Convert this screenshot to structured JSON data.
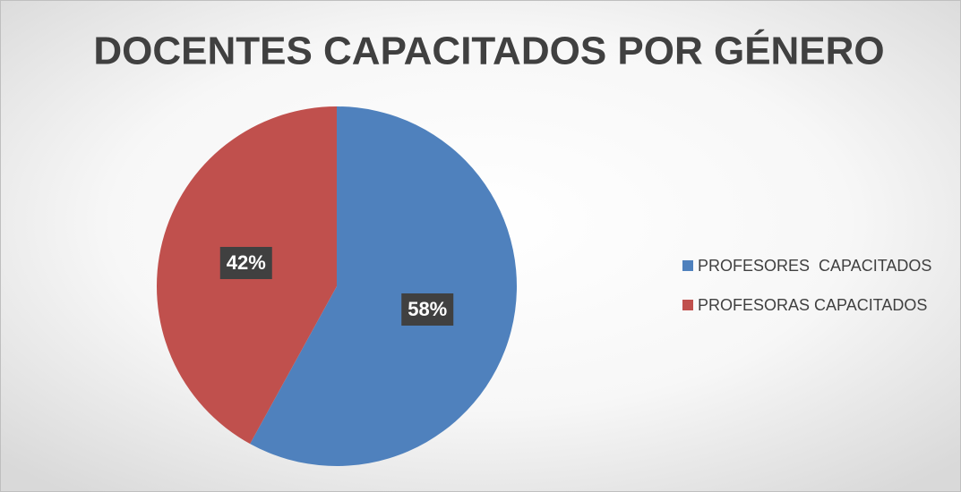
{
  "chart_data": {
    "type": "pie",
    "title": "DOCENTES CAPACITADOS POR GÉNERO",
    "categories": [
      "PROFESORES  CAPACITADOS",
      "PROFESORAS CAPACITADOS"
    ],
    "values": [
      58,
      42
    ],
    "value_labels": [
      "58%",
      "42%"
    ],
    "colors": [
      "#4f81bd",
      "#c0504d"
    ],
    "legend": "right"
  }
}
